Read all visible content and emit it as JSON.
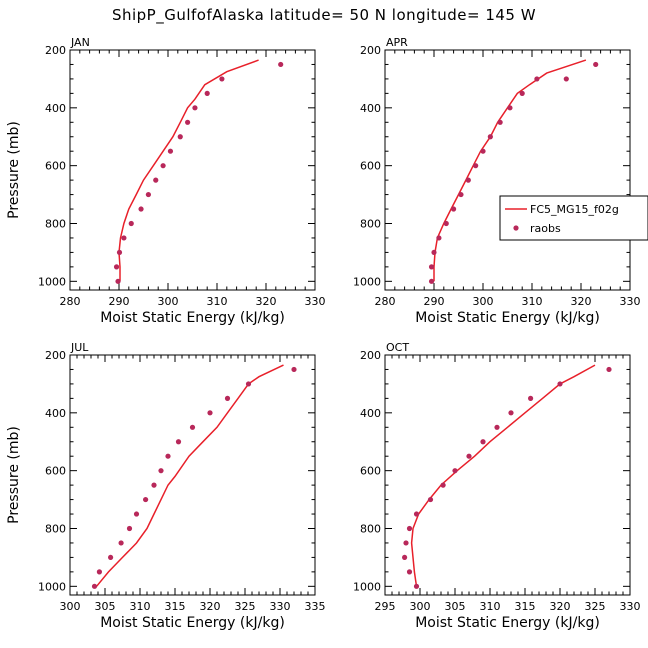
{
  "title": "ShipP_GulfofAlaska  latitude= 50 N longitude= 145 W",
  "shared": {
    "xlabel": "Moist Static Energy (kJ/kg)",
    "ylabel": "Pressure (mb)",
    "ylim": [
      1030,
      200
    ],
    "yticks": [
      200,
      400,
      600,
      800,
      1000
    ]
  },
  "legend": {
    "model_label": "FC5_MG15_f02g",
    "obs_label": "raobs",
    "model_color": "#e8202a",
    "obs_color": "#b8285a"
  },
  "chart_data": [
    {
      "type": "line",
      "panel": "JAN",
      "xlim": [
        280,
        330
      ],
      "xticks": [
        280,
        290,
        300,
        310,
        320,
        330
      ],
      "model": [
        [
          290.2,
          1000
        ],
        [
          290.2,
          950
        ],
        [
          290.0,
          900
        ],
        [
          290.3,
          850
        ],
        [
          291,
          800
        ],
        [
          292,
          750
        ],
        [
          293.5,
          700
        ],
        [
          295,
          650
        ],
        [
          297,
          600
        ],
        [
          299,
          550
        ],
        [
          301,
          500
        ],
        [
          302.5,
          450
        ],
        [
          304,
          400
        ],
        [
          305.5,
          370
        ],
        [
          307.5,
          320
        ],
        [
          312,
          275
        ],
        [
          318.5,
          235
        ]
      ],
      "obs": [
        [
          289.8,
          1000
        ],
        [
          289.5,
          950
        ],
        [
          290.1,
          900
        ],
        [
          291,
          850
        ],
        [
          292.5,
          800
        ],
        [
          294.5,
          750
        ],
        [
          296,
          700
        ],
        [
          297.5,
          650
        ],
        [
          299,
          600
        ],
        [
          300.5,
          550
        ],
        [
          302.5,
          500
        ],
        [
          304,
          450
        ],
        [
          305.5,
          400
        ],
        [
          308,
          350
        ],
        [
          311,
          300
        ],
        [
          323,
          250
        ]
      ]
    },
    {
      "type": "line",
      "panel": "APR",
      "xlim": [
        280,
        330
      ],
      "xticks": [
        280,
        290,
        300,
        310,
        320,
        330
      ],
      "model": [
        [
          290,
          1000
        ],
        [
          290,
          950
        ],
        [
          290.2,
          900
        ],
        [
          290.7,
          850
        ],
        [
          292,
          800
        ],
        [
          293.5,
          750
        ],
        [
          295,
          700
        ],
        [
          296.5,
          650
        ],
        [
          298,
          600
        ],
        [
          299.5,
          550
        ],
        [
          301.5,
          500
        ],
        [
          303,
          450
        ],
        [
          305,
          400
        ],
        [
          307,
          350
        ],
        [
          309.5,
          320
        ],
        [
          313,
          280
        ],
        [
          321,
          235
        ]
      ],
      "obs": [
        [
          289.5,
          1000
        ],
        [
          289.5,
          950
        ],
        [
          290,
          900
        ],
        [
          291,
          850
        ],
        [
          292.5,
          800
        ],
        [
          294,
          750
        ],
        [
          295.5,
          700
        ],
        [
          297,
          650
        ],
        [
          298.5,
          600
        ],
        [
          300,
          550
        ],
        [
          301.5,
          500
        ],
        [
          303.5,
          450
        ],
        [
          305.5,
          400
        ],
        [
          308,
          350
        ],
        [
          311,
          300
        ],
        [
          317,
          300
        ],
        [
          323,
          250
        ]
      ]
    },
    {
      "type": "line",
      "panel": "JUL",
      "xlim": [
        300,
        335
      ],
      "xticks": [
        300,
        305,
        310,
        315,
        320,
        325,
        330,
        335
      ],
      "model": [
        [
          303.8,
          1000
        ],
        [
          305.5,
          950
        ],
        [
          307.5,
          900
        ],
        [
          309.5,
          850
        ],
        [
          311,
          800
        ],
        [
          312,
          750
        ],
        [
          313,
          700
        ],
        [
          314,
          650
        ],
        [
          315,
          620
        ],
        [
          317,
          550
        ],
        [
          319,
          500
        ],
        [
          321,
          450
        ],
        [
          322.5,
          400
        ],
        [
          324,
          350
        ],
        [
          325.5,
          300
        ],
        [
          327,
          275
        ],
        [
          330.5,
          235
        ]
      ],
      "obs": [
        [
          303.5,
          1000
        ],
        [
          304.2,
          950
        ],
        [
          305.8,
          900
        ],
        [
          307.3,
          850
        ],
        [
          308.5,
          800
        ],
        [
          309.5,
          750
        ],
        [
          310.8,
          700
        ],
        [
          312,
          650
        ],
        [
          313,
          600
        ],
        [
          314,
          550
        ],
        [
          315.5,
          500
        ],
        [
          317.5,
          450
        ],
        [
          320,
          400
        ],
        [
          322.5,
          350
        ],
        [
          325.5,
          300
        ],
        [
          332,
          250
        ]
      ]
    },
    {
      "type": "line",
      "panel": "OCT",
      "xlim": [
        295,
        330
      ],
      "xticks": [
        295,
        300,
        305,
        310,
        315,
        320,
        325,
        330
      ],
      "model": [
        [
          299.5,
          1000
        ],
        [
          299.2,
          950
        ],
        [
          299,
          900
        ],
        [
          298.8,
          850
        ],
        [
          299,
          800
        ],
        [
          299.8,
          750
        ],
        [
          301.3,
          700
        ],
        [
          303,
          650
        ],
        [
          305.3,
          600
        ],
        [
          307.8,
          550
        ],
        [
          310,
          500
        ],
        [
          312.5,
          450
        ],
        [
          315,
          400
        ],
        [
          317.5,
          350
        ],
        [
          320,
          300
        ],
        [
          322,
          275
        ],
        [
          325,
          235
        ]
      ],
      "obs": [
        [
          299.5,
          1000
        ],
        [
          298.5,
          950
        ],
        [
          297.8,
          900
        ],
        [
          298,
          850
        ],
        [
          298.5,
          800
        ],
        [
          299.5,
          750
        ],
        [
          301.5,
          700
        ],
        [
          303.3,
          650
        ],
        [
          305,
          600
        ],
        [
          307,
          550
        ],
        [
          309,
          500
        ],
        [
          311,
          450
        ],
        [
          313,
          400
        ],
        [
          315.8,
          350
        ],
        [
          320,
          300
        ],
        [
          327,
          250
        ]
      ]
    }
  ]
}
